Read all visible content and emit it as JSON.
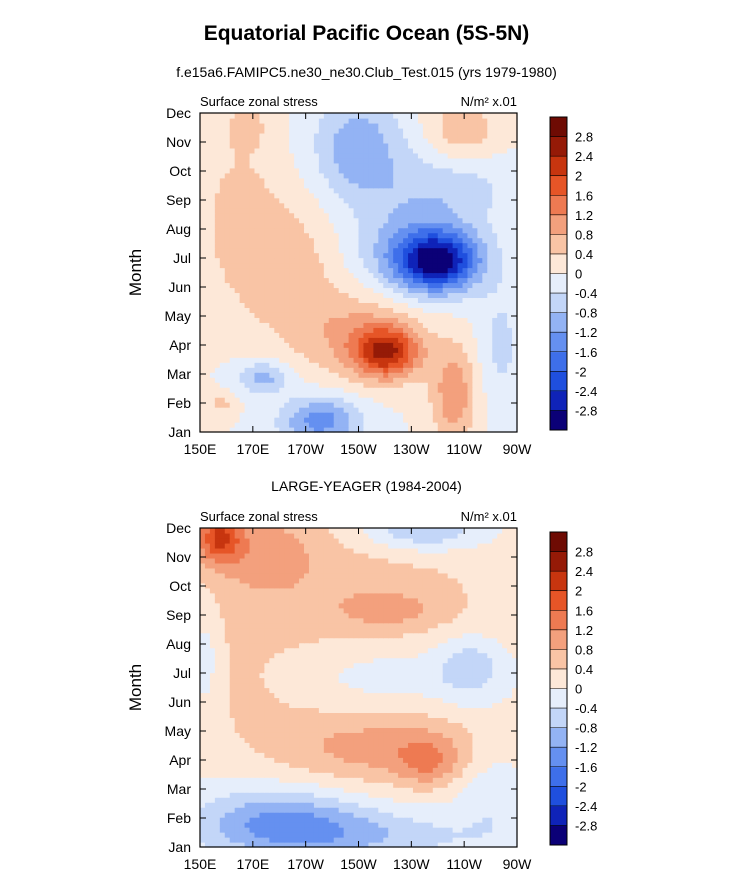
{
  "title": "Equatorial Pacific Ocean (5S-5N)",
  "colors": [
    "#0b0077",
    "#0f23b8",
    "#1f4fde",
    "#3e6fea",
    "#6590f0",
    "#93b3f4",
    "#c3d6f8",
    "#e6eefb",
    "#fde8d8",
    "#f9c4a5",
    "#f3a07d",
    "#ee7a52",
    "#e65527",
    "#c7350f",
    "#951a07",
    "#6e0b03"
  ],
  "chart_data": [
    {
      "type": "heatmap",
      "subtitle": "f.e15a6.FAMIPC5.ne30_ne30.Club_Test.015 (yrs 1979-1980)",
      "left_label": "Surface zonal stress",
      "units_label": "N/m² x.01",
      "ylabel": "Month",
      "xticks": [
        "150E",
        "170E",
        "170W",
        "150W",
        "130W",
        "110W",
        "90W"
      ],
      "yticks": [
        "Jan",
        "Feb",
        "Mar",
        "Apr",
        "May",
        "Jun",
        "Jul",
        "Aug",
        "Sep",
        "Oct",
        "Nov",
        "Dec"
      ],
      "colorbar_labels": [
        "2.8",
        "2.4",
        "2",
        "1.6",
        "1.2",
        "0.8",
        "0.4",
        "0",
        "-0.4",
        "-0.8",
        "-1.2",
        "-1.6",
        "-2",
        "-2.4",
        "-2.8"
      ],
      "xlim": [
        150,
        270
      ],
      "ylim": [
        1,
        12
      ],
      "features": [
        {
          "x": 0.59,
          "y": 3.75,
          "sx": 0.07,
          "sy": 0.6,
          "a": 2.0
        },
        {
          "x": 0.52,
          "y": 4.3,
          "sx": 0.13,
          "sy": 1.0,
          "a": 0.9
        },
        {
          "x": 0.8,
          "y": 2.3,
          "sx": 0.05,
          "sy": 1.2,
          "a": 1.1
        },
        {
          "x": 0.3,
          "y": 6.5,
          "sx": 0.12,
          "sy": 1.8,
          "a": 0.6
        },
        {
          "x": 0.12,
          "y": 8.5,
          "sx": 0.1,
          "sy": 2.2,
          "a": 0.5
        },
        {
          "x": 0.15,
          "y": 11.6,
          "sx": 0.05,
          "sy": 0.6,
          "a": 0.4
        },
        {
          "x": 0.83,
          "y": 11.4,
          "sx": 0.08,
          "sy": 0.8,
          "a": 0.7
        },
        {
          "x": 0.07,
          "y": 2.0,
          "sx": 0.03,
          "sy": 0.3,
          "a": 0.5
        },
        {
          "x": 0.75,
          "y": 6.9,
          "sx": 0.09,
          "sy": 0.7,
          "a": -2.5
        },
        {
          "x": 0.68,
          "y": 7.3,
          "sx": 0.14,
          "sy": 1.1,
          "a": -1.0
        },
        {
          "x": 0.5,
          "y": 10.8,
          "sx": 0.1,
          "sy": 1.3,
          "a": -1.1
        },
        {
          "x": 0.38,
          "y": 1.4,
          "sx": 0.09,
          "sy": 0.6,
          "a": -1.4
        },
        {
          "x": 0.2,
          "y": 2.9,
          "sx": 0.06,
          "sy": 0.4,
          "a": -1.0
        },
        {
          "x": 0.78,
          "y": 9.5,
          "sx": 0.15,
          "sy": 0.9,
          "a": -0.6
        },
        {
          "x": 0.95,
          "y": 4.0,
          "sx": 0.05,
          "sy": 1.5,
          "a": -0.5
        }
      ]
    },
    {
      "type": "heatmap",
      "subtitle": "LARGE-YEAGER (1984-2004)",
      "left_label": "Surface zonal stress",
      "units_label": "N/m² x.01",
      "ylabel": "Month",
      "xticks": [
        "150E",
        "170E",
        "170W",
        "150W",
        "130W",
        "110W",
        "90W"
      ],
      "yticks": [
        "Jan",
        "Feb",
        "Mar",
        "Apr",
        "May",
        "Jun",
        "Jul",
        "Aug",
        "Sep",
        "Oct",
        "Nov",
        "Dec"
      ],
      "colorbar_labels": [
        "2.8",
        "2.4",
        "2",
        "1.6",
        "1.2",
        "0.8",
        "0.4",
        "0",
        "-0.4",
        "-0.8",
        "-1.2",
        "-1.6",
        "-2",
        "-2.4",
        "-2.8"
      ],
      "xlim": [
        150,
        270
      ],
      "ylim": [
        1,
        12
      ],
      "features": [
        {
          "x": 0.4,
          "y": 9.5,
          "sx": 0.45,
          "sy": 2.8,
          "a": 0.6
        },
        {
          "x": 0.58,
          "y": 4.4,
          "sx": 0.25,
          "sy": 0.9,
          "a": 0.9
        },
        {
          "x": 0.72,
          "y": 3.9,
          "sx": 0.07,
          "sy": 0.6,
          "a": 0.7
        },
        {
          "x": 0.06,
          "y": 11.7,
          "sx": 0.05,
          "sy": 0.6,
          "a": 1.6
        },
        {
          "x": 0.2,
          "y": 11.2,
          "sx": 0.12,
          "sy": 1.0,
          "a": 0.6
        },
        {
          "x": 0.6,
          "y": 9.2,
          "sx": 0.12,
          "sy": 0.5,
          "a": 0.5
        },
        {
          "x": 0.15,
          "y": 6.0,
          "sx": 0.15,
          "sy": 1.2,
          "a": 0.2
        },
        {
          "x": 0.25,
          "y": 1.9,
          "sx": 0.18,
          "sy": 0.8,
          "a": -1.2
        },
        {
          "x": 0.5,
          "y": 1.4,
          "sx": 0.25,
          "sy": 0.6,
          "a": -0.7
        },
        {
          "x": 0.7,
          "y": 11.9,
          "sx": 0.14,
          "sy": 0.5,
          "a": -1.0
        },
        {
          "x": 0.85,
          "y": 7.2,
          "sx": 0.08,
          "sy": 0.8,
          "a": -0.8
        },
        {
          "x": 0.55,
          "y": 7.0,
          "sx": 0.2,
          "sy": 0.9,
          "a": -0.5
        },
        {
          "x": 0.02,
          "y": 7.5,
          "sx": 0.03,
          "sy": 1.5,
          "a": -0.5
        },
        {
          "x": 0.92,
          "y": 3.0,
          "sx": 0.08,
          "sy": 1.4,
          "a": -0.4
        }
      ]
    }
  ]
}
